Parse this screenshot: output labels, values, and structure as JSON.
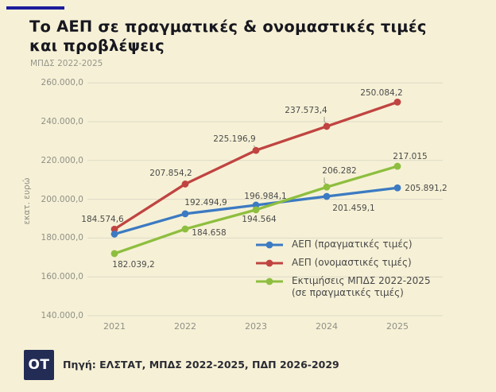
{
  "header": {
    "title": "Το ΑΕΠ σε πραγματικές & ονομαστικές τιμές και προβλέψεις",
    "title_line1": "Το ΑΕΠ σε πραγματικές & ονομαστικές τιμές",
    "title_line2": "και προβλέψεις",
    "subtitle": "ΜΠΔΣ 2022-2025"
  },
  "footer": {
    "logo": "OT",
    "source": "Πηγή: ΕΛΣΤΑΤ, ΜΠΔΣ 2022-2025, ΠΔΠ 2026-2029"
  },
  "colors": {
    "background": "#f6f1d6",
    "accent_line": "#1c1c9e",
    "logo_background": "#232c55",
    "grid": "#dcd9c7",
    "tick_text": "#8f8f86",
    "data_label_text": "#4b4b4b",
    "leader_line": "#a9a79a"
  },
  "chart_data": {
    "type": "line",
    "title": "Το ΑΕΠ σε πραγματικές & ονομαστικές τιμές και προβλέψεις",
    "subtitle": "ΜΠΔΣ 2022-2025",
    "xlabel": "",
    "ylabel": "εκατ. ευρώ",
    "categories": [
      "2021",
      "2022",
      "2023",
      "2024",
      "2025"
    ],
    "ylim": [
      140000,
      260000
    ],
    "ytick_step": 20000,
    "grid": true,
    "legend_position": "inside-bottom-right",
    "yticks": [
      {
        "v": 260000,
        "label": "260.000,0"
      },
      {
        "v": 240000,
        "label": "240.000,0"
      },
      {
        "v": 220000,
        "label": "220.000,0"
      },
      {
        "v": 200000,
        "label": "200.000,0"
      },
      {
        "v": 180000,
        "label": "180.000,0"
      },
      {
        "v": 160000,
        "label": "160.000,0"
      },
      {
        "v": 140000,
        "label": "140.000,0"
      }
    ],
    "series": [
      {
        "name": "ΑΕΠ (ονομαστικές τιμές)",
        "color": "#c04441",
        "values": [
          184574.6,
          207854.2,
          225196.9,
          237573.4,
          250084.2
        ],
        "labels": [
          "184.574,6",
          "207.854,2",
          "225.196,9",
          "237.573,4",
          "250.084,2"
        ],
        "label_offsets": [
          [
            -15,
            -12
          ],
          [
            -18,
            -13
          ],
          [
            -27,
            -14
          ],
          [
            -26,
            -20
          ],
          [
            -20,
            -11
          ]
        ],
        "leaders": [
          false,
          false,
          true,
          true,
          false
        ]
      },
      {
        "name": "ΑΕΠ (πραγματικές τιμές)",
        "color": "#3c7ac2",
        "values": [
          182039.2,
          192494.9,
          196984.1,
          201459.1,
          205891.2
        ],
        "labels": [
          "182.039,2",
          "192.494,9",
          "196.984,1",
          "201.459,1",
          "205.891,2"
        ],
        "label_offsets": [
          [
            24,
            39
          ],
          [
            26,
            -14
          ],
          [
            12,
            -11
          ],
          [
            34,
            15
          ],
          [
            36,
            1
          ]
        ],
        "leaders": [
          false,
          false,
          false,
          false,
          false
        ]
      },
      {
        "name": "Εκτιμήσεις ΜΠΔΣ 2022-2025",
        "name_line2": "(σε πραγματικές τιμές)",
        "color": "#8ebe3f",
        "values": [
          172000,
          184658,
          194564,
          206282,
          217015
        ],
        "note": "2021 value not labeled on chart; estimated from gridlines",
        "labels": [
          "",
          "184.658",
          "194.564",
          "206.282",
          "217.015"
        ],
        "label_offsets": [
          [
            0,
            0
          ],
          [
            30,
            5
          ],
          [
            4,
            12
          ],
          [
            16,
            -20
          ],
          [
            16,
            -12
          ]
        ],
        "leaders": [
          false,
          false,
          false,
          true,
          false
        ]
      }
    ],
    "legend_order": [
      1,
      0,
      2
    ]
  }
}
